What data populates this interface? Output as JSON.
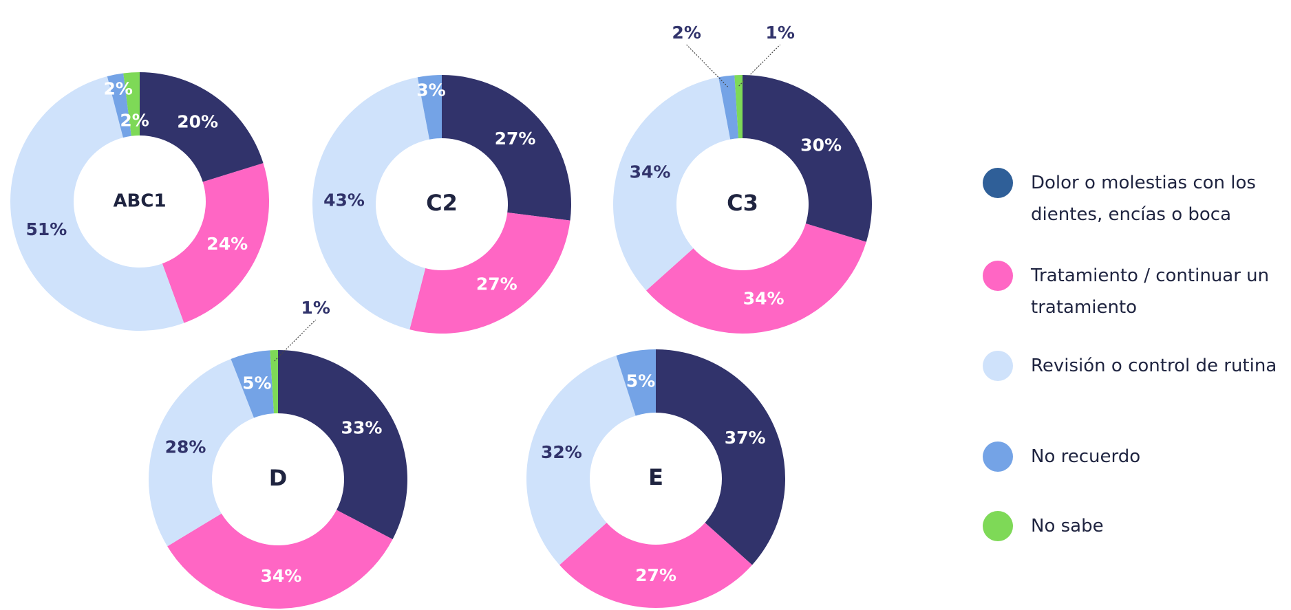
{
  "legend": {
    "labels": [
      "Dolor o molestias con los dientes, encías o boca",
      "Tratamiento / continuar un tratamiento",
      "Revisión o control de rutina",
      "No recuerdo",
      "No sabe"
    ],
    "colors": [
      "#2f5f98",
      "#ff66c4",
      "#cfe2fb",
      "#74a3e6",
      "#7ed957"
    ]
  },
  "chart_data": [
    {
      "type": "pie",
      "title": "ABC1",
      "values": [
        20,
        24,
        51,
        2,
        2
      ],
      "value_labels": [
        "20%",
        "24%",
        "51%",
        "2%",
        "2%"
      ],
      "colors": [
        "#31336b",
        "#ff66c4",
        "#cfe2fb",
        "#74a3e6",
        "#7ed957"
      ]
    },
    {
      "type": "pie",
      "title": "C2",
      "values": [
        27,
        27,
        43,
        3
      ],
      "value_labels": [
        "27%",
        "27%",
        "43%",
        "3%"
      ],
      "colors": [
        "#31336b",
        "#ff66c4",
        "#cfe2fb",
        "#74a3e6"
      ]
    },
    {
      "type": "pie",
      "title": "C3",
      "values": [
        30,
        34,
        34,
        2,
        1
      ],
      "value_labels": [
        "30%",
        "34%",
        "34%",
        "2%",
        "1%"
      ],
      "colors": [
        "#31336b",
        "#ff66c4",
        "#cfe2fb",
        "#74a3e6",
        "#7ed957"
      ]
    },
    {
      "type": "pie",
      "title": "D",
      "values": [
        33,
        34,
        28,
        5,
        1
      ],
      "value_labels": [
        "33%",
        "34%",
        "28%",
        "5%",
        "1%"
      ],
      "colors": [
        "#31336b",
        "#ff66c4",
        "#cfe2fb",
        "#74a3e6",
        "#7ed957"
      ]
    },
    {
      "type": "pie",
      "title": "E",
      "values": [
        37,
        27,
        32,
        5
      ],
      "value_labels": [
        "37%",
        "27%",
        "32%",
        "5%"
      ],
      "colors": [
        "#31336b",
        "#ff66c4",
        "#cfe2fb",
        "#74a3e6"
      ]
    }
  ]
}
